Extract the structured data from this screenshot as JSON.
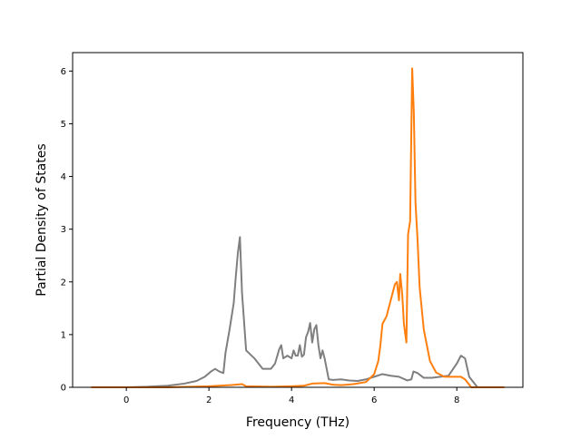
{
  "chart_data": {
    "type": "line",
    "title": "",
    "xlabel": "Frequency (THz)",
    "ylabel": "Partial Density of States",
    "xlim": [
      -1.3,
      9.6
    ],
    "ylim": [
      0,
      6.35
    ],
    "xticks": [
      0,
      2,
      4,
      6,
      8
    ],
    "yticks": [
      0,
      1,
      2,
      3,
      4,
      5,
      6
    ],
    "grid": false,
    "legend": "none",
    "series": [
      {
        "color": "#7f7f7f",
        "x": [
          -0.85,
          0.0,
          0.5,
          1.0,
          1.4,
          1.7,
          1.9,
          2.05,
          2.15,
          2.25,
          2.35,
          2.4,
          2.5,
          2.6,
          2.65,
          2.7,
          2.75,
          2.8,
          2.9,
          3.1,
          3.3,
          3.5,
          3.6,
          3.7,
          3.75,
          3.8,
          3.9,
          4.0,
          4.05,
          4.1,
          4.15,
          4.2,
          4.25,
          4.3,
          4.35,
          4.4,
          4.45,
          4.5,
          4.55,
          4.6,
          4.65,
          4.7,
          4.75,
          4.8,
          4.9,
          5.0,
          5.2,
          5.4,
          5.6,
          5.8,
          6.0,
          6.2,
          6.4,
          6.6,
          6.8,
          6.9,
          6.95,
          7.05,
          7.2,
          7.4,
          7.6,
          7.8,
          8.0,
          8.1,
          8.2,
          8.3,
          8.5,
          9.15
        ],
        "y": [
          0.0,
          0.0,
          0.01,
          0.03,
          0.07,
          0.12,
          0.2,
          0.3,
          0.35,
          0.3,
          0.27,
          0.65,
          1.1,
          1.6,
          2.1,
          2.55,
          2.85,
          1.8,
          0.7,
          0.55,
          0.35,
          0.35,
          0.45,
          0.72,
          0.8,
          0.55,
          0.6,
          0.55,
          0.7,
          0.6,
          0.6,
          0.8,
          0.58,
          0.62,
          0.95,
          1.05,
          1.22,
          0.85,
          1.1,
          1.18,
          0.8,
          0.55,
          0.7,
          0.55,
          0.15,
          0.14,
          0.15,
          0.13,
          0.12,
          0.15,
          0.2,
          0.25,
          0.22,
          0.2,
          0.13,
          0.15,
          0.3,
          0.27,
          0.18,
          0.18,
          0.2,
          0.22,
          0.45,
          0.6,
          0.55,
          0.2,
          0.0,
          0.0
        ]
      },
      {
        "color": "#ff7f0e",
        "x": [
          -0.85,
          1.0,
          2.0,
          2.5,
          2.8,
          2.9,
          3.5,
          4.0,
          4.3,
          4.5,
          4.8,
          5.0,
          5.2,
          5.5,
          5.8,
          6.0,
          6.1,
          6.15,
          6.2,
          6.3,
          6.4,
          6.5,
          6.55,
          6.6,
          6.63,
          6.68,
          6.72,
          6.78,
          6.82,
          6.87,
          6.92,
          6.96,
          7.0,
          7.05,
          7.1,
          7.2,
          7.35,
          7.5,
          7.7,
          7.9,
          8.1,
          8.2,
          8.35,
          9.15
        ],
        "y": [
          0.0,
          0.0,
          0.02,
          0.04,
          0.06,
          0.02,
          0.01,
          0.02,
          0.03,
          0.07,
          0.08,
          0.05,
          0.04,
          0.06,
          0.1,
          0.25,
          0.5,
          0.8,
          1.2,
          1.35,
          1.65,
          1.95,
          2.0,
          1.65,
          2.15,
          1.75,
          1.2,
          0.85,
          2.9,
          3.15,
          6.05,
          5.2,
          3.5,
          2.8,
          1.9,
          1.1,
          0.5,
          0.28,
          0.2,
          0.2,
          0.2,
          0.15,
          0.0,
          0.0
        ]
      }
    ]
  }
}
